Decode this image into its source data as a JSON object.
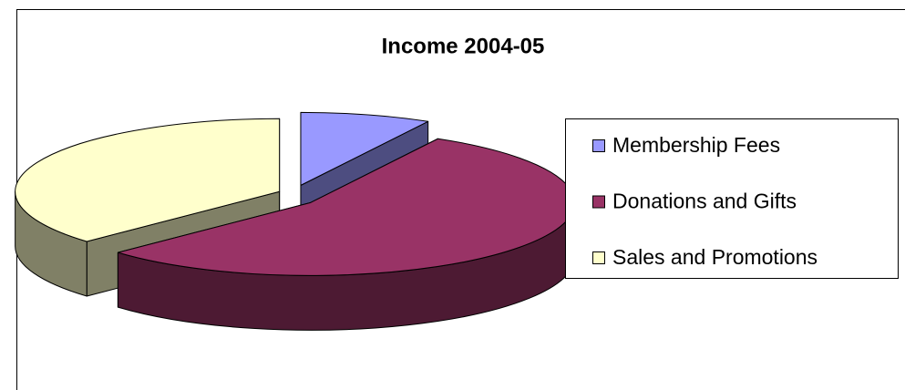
{
  "chart_data": {
    "type": "pie",
    "title": "Income 2004-05",
    "categories": [
      "Membership Fees",
      "Donations and Gifts",
      "Sales and Promotions"
    ],
    "values": [
      8,
      55,
      37
    ],
    "colors": [
      "#9999ff",
      "#993366",
      "#ffffcc"
    ],
    "legend": "right"
  }
}
